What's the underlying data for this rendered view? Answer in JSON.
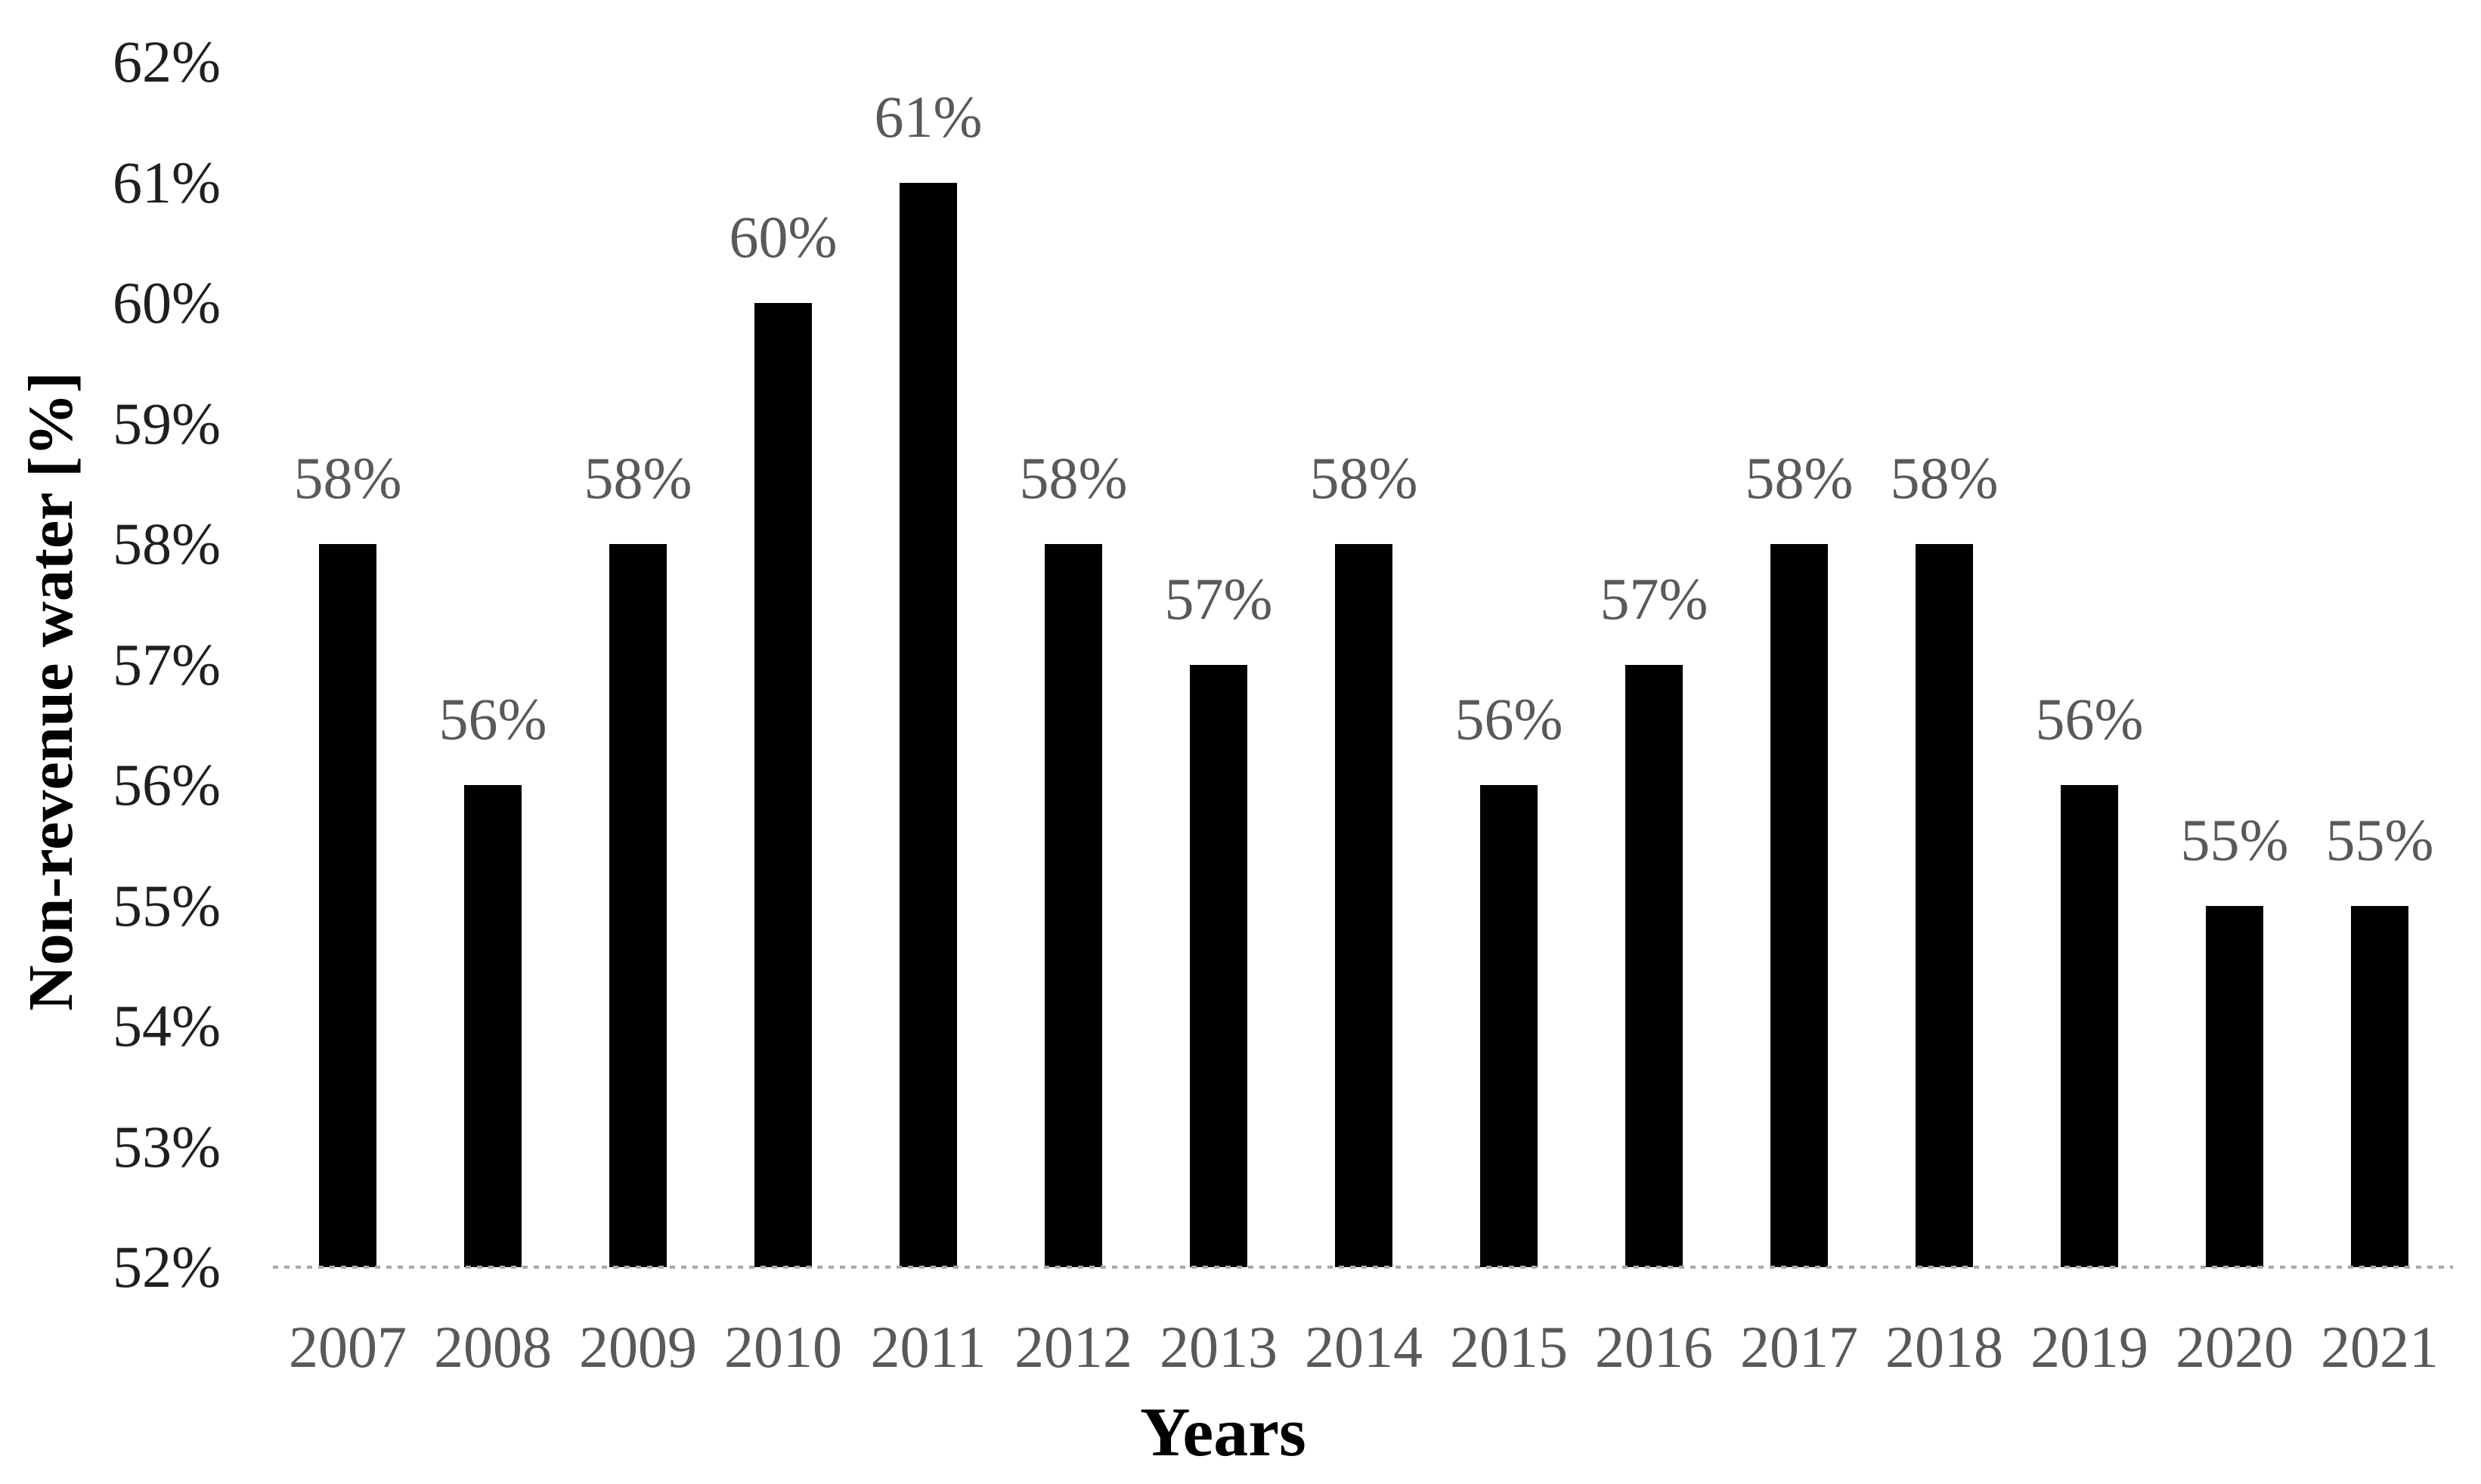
{
  "chart_data": {
    "type": "bar",
    "title": "",
    "categories": [
      "2007",
      "2008",
      "2009",
      "2010",
      "2011",
      "2012",
      "2013",
      "2014",
      "2015",
      "2016",
      "2017",
      "2018",
      "2019",
      "2020",
      "2021"
    ],
    "values": [
      58,
      56,
      58,
      60,
      61,
      58,
      57,
      58,
      56,
      57,
      58,
      58,
      56,
      55,
      55
    ],
    "data_labels": [
      "58%",
      "56%",
      "58%",
      "60%",
      "61%",
      "58%",
      "57%",
      "58%",
      "56%",
      "57%",
      "58%",
      "58%",
      "56%",
      "55%",
      "55%"
    ],
    "xlabel": "Years",
    "ylabel": "Non-revenue water [%]",
    "ylim": [
      52,
      62
    ],
    "ytick_step": 1,
    "ytick_labels": [
      "52%",
      "53%",
      "54%",
      "55%",
      "56%",
      "57%",
      "58%",
      "59%",
      "60%",
      "61%",
      "62%"
    ],
    "grid": false,
    "legend": "none",
    "data_labels_position": "above-bars",
    "colors": {
      "bar": "#000000",
      "value_label": "#595959",
      "x_tick_label": "#595959",
      "y_tick_label": "#1f1f1f",
      "axis_title": "#000000",
      "axis_line": "#a8a8a8",
      "background": "#ffffff"
    }
  }
}
